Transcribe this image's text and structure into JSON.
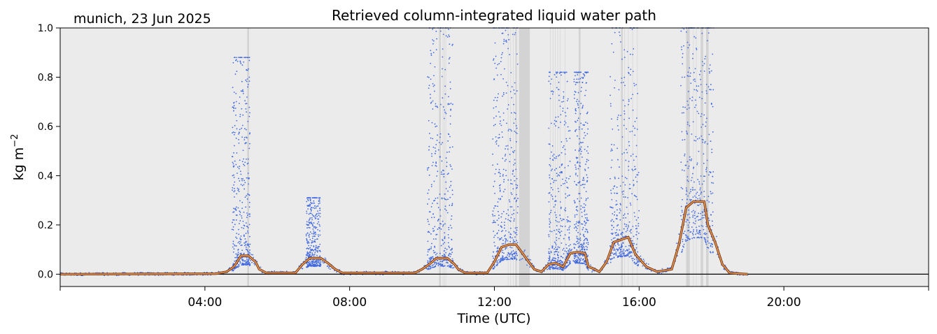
{
  "chart_data": {
    "type": "scatter",
    "title": "Retrieved column-integrated liquid water path",
    "subtitle": "munich, 23 Jun 2025",
    "xlabel": "Time (UTC)",
    "ylabel_base": "kg m",
    "ylabel_exp": "−2",
    "xlim_hours": [
      0,
      24
    ],
    "ylim": [
      -0.05,
      1.0
    ],
    "x_ticks": [
      {
        "hour": 4,
        "label": "04:00"
      },
      {
        "hour": 8,
        "label": "08:00"
      },
      {
        "hour": 12,
        "label": "12:00"
      },
      {
        "hour": 16,
        "label": "16:00"
      },
      {
        "hour": 20,
        "label": "20:00"
      }
    ],
    "y_ticks": [
      {
        "value": 0.0,
        "label": "0.0"
      },
      {
        "value": 0.2,
        "label": "0.2"
      },
      {
        "value": 0.4,
        "label": "0.4"
      },
      {
        "value": 0.6,
        "label": "0.6"
      },
      {
        "value": 0.8,
        "label": "0.8"
      },
      {
        "value": 1.0,
        "label": "1.0"
      }
    ],
    "grid": false,
    "colors": {
      "background": "#ebebeb",
      "flag_band": "#d3d3d3",
      "points": "#4169e1",
      "mean_line_outer": "#7a3a10",
      "mean_line_inner": "#f0a060",
      "zero_line": "#000000"
    },
    "flag_bands_hours": [
      [
        5.17,
        5.22
      ],
      [
        10.47,
        10.52
      ],
      [
        12.58,
        12.62
      ],
      [
        12.68,
        12.98
      ],
      [
        14.33,
        14.38
      ],
      [
        15.5,
        15.55
      ],
      [
        17.3,
        17.4
      ],
      [
        17.7,
        17.77
      ],
      [
        17.85,
        17.92
      ]
    ],
    "thin_flags_hours": [
      10.58,
      10.62,
      10.66,
      12.38,
      12.45,
      12.52,
      13.55,
      13.62,
      13.68,
      13.75,
      13.82,
      13.95,
      15.6,
      15.7,
      15.82,
      15.95,
      17.5,
      17.58
    ],
    "mean_line": {
      "x_hours": [
        0,
        4.3,
        4.6,
        4.8,
        5.0,
        5.2,
        5.4,
        5.5,
        5.7,
        6.5,
        6.7,
        6.9,
        7.2,
        7.4,
        7.6,
        7.8,
        9.8,
        10.0,
        10.2,
        10.4,
        10.7,
        10.9,
        11.0,
        11.2,
        11.8,
        12.0,
        12.2,
        12.4,
        12.6,
        12.8,
        13.1,
        13.3,
        13.5,
        13.7,
        13.9,
        14.1,
        14.3,
        14.5,
        14.6,
        14.7,
        14.9,
        15.1,
        15.3,
        15.5,
        15.7,
        15.9,
        16.2,
        16.5,
        16.9,
        17.1,
        17.3,
        17.5,
        17.8,
        17.9,
        18.1,
        18.3,
        18.5,
        19.0
      ],
      "values": [
        0.0,
        0.002,
        0.01,
        0.03,
        0.075,
        0.075,
        0.05,
        0.02,
        0.005,
        0.005,
        0.04,
        0.065,
        0.065,
        0.045,
        0.02,
        0.005,
        0.005,
        0.02,
        0.04,
        0.065,
        0.065,
        0.04,
        0.02,
        0.005,
        0.005,
        0.05,
        0.11,
        0.12,
        0.12,
        0.08,
        0.02,
        0.01,
        0.04,
        0.045,
        0.03,
        0.085,
        0.09,
        0.085,
        0.03,
        0.025,
        0.01,
        0.05,
        0.13,
        0.14,
        0.15,
        0.08,
        0.03,
        0.01,
        0.02,
        0.12,
        0.27,
        0.295,
        0.295,
        0.2,
        0.13,
        0.04,
        0.005,
        0.0
      ]
    },
    "point_clusters": [
      {
        "center_hour": 5.0,
        "width_hours": 0.5,
        "peak": 0.88
      },
      {
        "center_hour": 7.0,
        "width_hours": 0.4,
        "peak": 0.31
      },
      {
        "center_hour": 10.5,
        "width_hours": 0.7,
        "peak": 1.0
      },
      {
        "center_hour": 12.3,
        "width_hours": 0.7,
        "peak": 1.0
      },
      {
        "center_hour": 13.8,
        "width_hours": 0.6,
        "peak": 0.82
      },
      {
        "center_hour": 14.4,
        "width_hours": 0.4,
        "peak": 0.82
      },
      {
        "center_hour": 15.6,
        "width_hours": 0.8,
        "peak": 1.0
      },
      {
        "center_hour": 17.6,
        "width_hours": 0.9,
        "peak": 1.0
      }
    ],
    "point_extent_hours": [
      0,
      19.0
    ]
  }
}
